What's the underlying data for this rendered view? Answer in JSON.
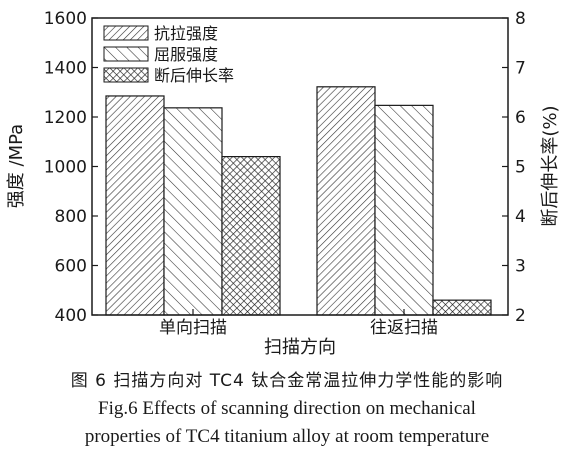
{
  "chart_data": {
    "type": "bar",
    "categories": [
      "单向扫描",
      "往返扫描"
    ],
    "series": [
      {
        "name": "抗拉强度",
        "axis": "left",
        "pattern": "hatch-dense",
        "values": [
          1285,
          1322
        ]
      },
      {
        "name": "屈服强度",
        "axis": "left",
        "pattern": "hatch-sparse",
        "values": [
          1237,
          1247
        ]
      },
      {
        "name": "断后伸长率",
        "axis": "right",
        "pattern": "crosshatch",
        "values": [
          5.2,
          2.3
        ]
      }
    ],
    "xlabel": "扫描方向",
    "ylabel_left": "强度 /MPa",
    "ylabel_right": "断后伸长率(%)",
    "ylim_left": [
      400,
      1600
    ],
    "yticks_left": [
      "400",
      "600",
      "800",
      "1000",
      "1200",
      "1400",
      "1600"
    ],
    "ylim_right": [
      2,
      8
    ],
    "yticks_right": [
      "2",
      "3",
      "4",
      "5",
      "6",
      "7",
      "8"
    ],
    "legend_position": "top-left",
    "grid": false
  },
  "caption": {
    "zh": "图 6  扫描方向对 TC4 钛合金常温拉伸力学性能的影响",
    "en_line1": "Fig.6  Effects of scanning direction on mechanical",
    "en_line2": "properties of TC4 titanium alloy at room temperature"
  },
  "colors": {
    "ink": "#1a1a1a",
    "background": "#ffffff"
  }
}
